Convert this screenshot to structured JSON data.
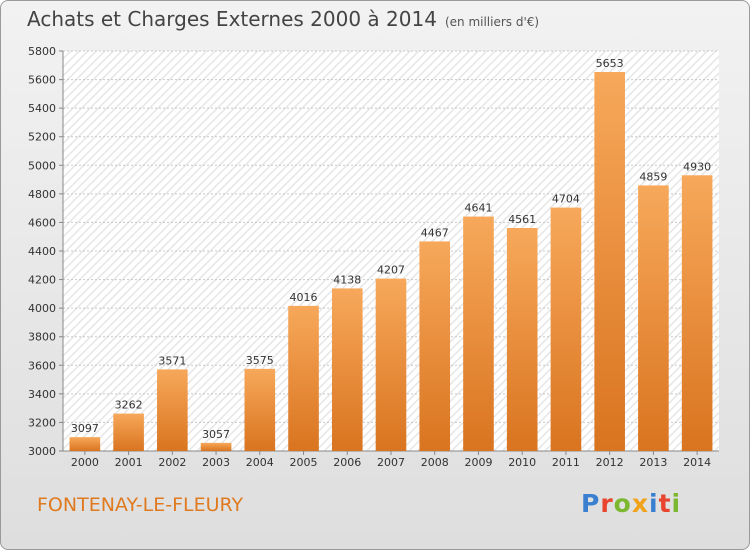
{
  "title": {
    "main": "Achats et Charges Externes 2000 à 2014",
    "unit": "(en milliers d'€)"
  },
  "location": "FONTENAY-LE-FLEURY",
  "logo": {
    "letters": [
      {
        "char": "P",
        "color": "#3a7fd0"
      },
      {
        "char": "r",
        "color": "#e8442e"
      },
      {
        "char": "o",
        "color": "#7cb82f"
      },
      {
        "char": "x",
        "color": "#f0a21b"
      },
      {
        "char": "i",
        "color": "#3a7fd0"
      },
      {
        "char": "t",
        "color": "#e8442e"
      },
      {
        "char": "i",
        "color": "#7cb82f"
      }
    ]
  },
  "colors": {
    "bar_light": "#f7a85a",
    "bar_dark": "#d97420",
    "grid": "#c8c8c8",
    "axis_text": "#333333",
    "town": "#e07a1f"
  },
  "chart_data": {
    "type": "bar",
    "categories": [
      "2000",
      "2001",
      "2002",
      "2003",
      "2004",
      "2005",
      "2006",
      "2007",
      "2008",
      "2009",
      "2010",
      "2011",
      "2012",
      "2013",
      "2014"
    ],
    "values": [
      3097,
      3262,
      3571,
      3057,
      3575,
      4016,
      4138,
      4207,
      4467,
      4641,
      4561,
      4704,
      5653,
      4859,
      4930
    ],
    "ylim": [
      3000,
      5800
    ],
    "yticks": [
      3000,
      3200,
      3400,
      3600,
      3800,
      4000,
      4200,
      4400,
      4600,
      4800,
      5000,
      5200,
      5400,
      5600,
      5800
    ],
    "grid": true,
    "data_labels": true
  }
}
